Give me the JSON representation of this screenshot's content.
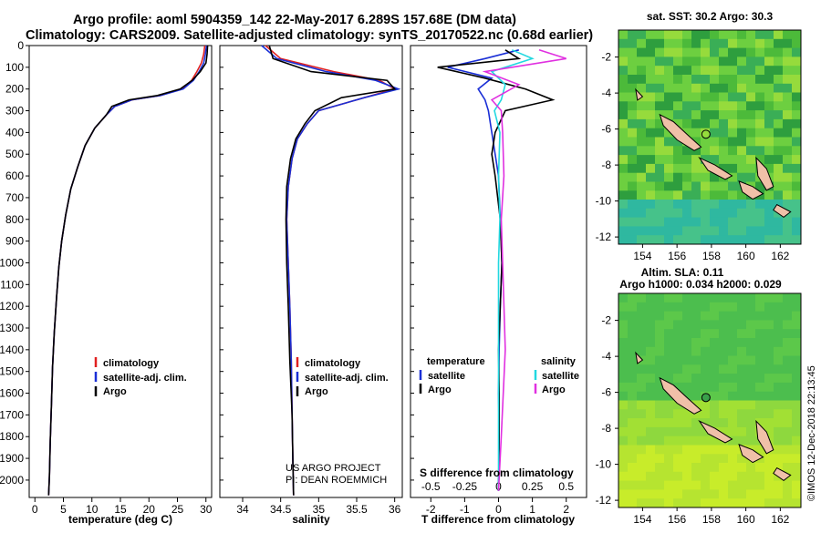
{
  "header": {
    "line1": "Argo profile: aoml 5904359_142 22-May-2017 6.289S 157.68E (DM data)",
    "line2": "Climatology: CARS2009. Satellite-adjusted climatology: synTS_20170522.nc (0.68d earlier)"
  },
  "colors": {
    "climatology": "#e02020",
    "satellite": "#1a2fd6",
    "argo": "#000000",
    "sal_satellite": "#22d8e0",
    "sal_argo": "#e030e0"
  },
  "credit": {
    "line1": "US ARGO PROJECT",
    "line2": "PI: DEAN ROEMMICH"
  },
  "stamp": "©IMOS 12-Dec-2018 22:13:45",
  "chart_data": [
    {
      "type": "line",
      "name": "temperature-profile",
      "xlabel": "temperature (deg C)",
      "ylabel": "",
      "xlim": [
        -1,
        31
      ],
      "ylim": [
        2080,
        0
      ],
      "xticks": [
        0,
        5,
        10,
        15,
        20,
        25,
        30
      ],
      "yticks": [
        0,
        100,
        200,
        300,
        400,
        500,
        600,
        700,
        800,
        900,
        1000,
        1100,
        1200,
        1300,
        1400,
        1500,
        1600,
        1700,
        1800,
        1900,
        2000
      ],
      "legend": [
        "climatology",
        "satellite-adj. clim.",
        "Argo"
      ],
      "series": [
        {
          "name": "climatology",
          "x": [
            29.8,
            29.6,
            29.2,
            28.4,
            27.5,
            25.8,
            22.0,
            17.0,
            14.0,
            12.5,
            10.5,
            8.8,
            7.5,
            6.3,
            5.4,
            4.7,
            4.2,
            3.8,
            3.4,
            3.1,
            2.9,
            2.7,
            2.55,
            2.4
          ],
          "y": [
            0,
            40,
            80,
            120,
            160,
            200,
            230,
            250,
            280,
            320,
            380,
            460,
            560,
            660,
            780,
            900,
            1020,
            1160,
            1320,
            1480,
            1650,
            1820,
            1980,
            2070
          ]
        },
        {
          "name": "satellite-adj. clim.",
          "x": [
            30.1,
            29.9,
            29.6,
            28.8,
            27.8,
            26.0,
            22.0,
            17.0,
            14.0,
            12.5,
            10.5,
            8.8,
            7.5,
            6.3,
            5.4,
            4.7,
            4.2,
            3.8,
            3.4,
            3.1,
            2.9,
            2.7,
            2.55,
            2.4
          ],
          "y": [
            0,
            40,
            80,
            120,
            160,
            200,
            230,
            250,
            280,
            320,
            380,
            460,
            560,
            660,
            780,
            900,
            1020,
            1160,
            1320,
            1480,
            1650,
            1820,
            1980,
            2070
          ]
        },
        {
          "name": "Argo",
          "x": [
            30.3,
            30.2,
            30.0,
            29.0,
            27.6,
            25.5,
            21.5,
            16.5,
            13.5,
            12.5,
            10.5,
            8.8,
            7.5,
            6.3,
            5.4,
            4.7,
            4.2,
            3.8,
            3.4,
            3.1,
            2.9,
            2.7,
            2.55,
            2.4
          ],
          "y": [
            0,
            40,
            80,
            120,
            160,
            200,
            230,
            250,
            280,
            320,
            380,
            460,
            560,
            660,
            780,
            900,
            1020,
            1160,
            1320,
            1480,
            1650,
            1820,
            1980,
            2070
          ]
        }
      ]
    },
    {
      "type": "line",
      "name": "salinity-profile",
      "xlabel": "salinity",
      "xlim": [
        33.7,
        36.1
      ],
      "ylim": [
        2080,
        0
      ],
      "xticks": [
        34,
        34.5,
        35,
        35.5,
        36
      ],
      "xticklabels": [
        "34",
        "34.5",
        "35",
        "35.5",
        "36"
      ],
      "legend": [
        "climatology",
        "satellite-adj. clim.",
        "Argo"
      ],
      "series": [
        {
          "name": "climatology",
          "x": [
            34.3,
            34.5,
            35.2,
            35.8,
            36.0,
            35.6,
            35.0,
            34.85,
            34.72,
            34.65,
            34.6,
            34.58,
            34.6,
            34.62,
            34.64,
            34.65,
            34.66,
            34.67
          ],
          "y": [
            0,
            60,
            120,
            160,
            200,
            240,
            300,
            360,
            430,
            520,
            650,
            800,
            1000,
            1200,
            1450,
            1700,
            1900,
            2070
          ]
        },
        {
          "name": "satellite-adj. clim.",
          "x": [
            34.25,
            34.45,
            35.1,
            35.75,
            36.05,
            35.6,
            35.0,
            34.85,
            34.72,
            34.65,
            34.6,
            34.58,
            34.6,
            34.62,
            34.64,
            34.65,
            34.66,
            34.67
          ],
          "y": [
            0,
            60,
            120,
            160,
            200,
            240,
            300,
            360,
            430,
            520,
            650,
            800,
            1000,
            1200,
            1450,
            1700,
            1900,
            2070
          ]
        },
        {
          "name": "Argo",
          "x": [
            34.35,
            34.4,
            34.9,
            35.9,
            36.0,
            35.3,
            34.95,
            34.82,
            34.7,
            34.63,
            34.58,
            34.57,
            34.58,
            34.6,
            34.62,
            34.65,
            34.66,
            34.67
          ],
          "y": [
            0,
            60,
            120,
            160,
            200,
            240,
            300,
            360,
            430,
            520,
            650,
            800,
            1000,
            1200,
            1450,
            1700,
            1900,
            2070
          ]
        }
      ]
    },
    {
      "type": "line",
      "name": "difference-profile",
      "xlabel": "T difference from climatology",
      "xlabel2": "S difference from climatology",
      "xlim": [
        -2.6,
        2.6
      ],
      "ylim": [
        2080,
        0
      ],
      "xticks": [
        -2,
        -1,
        0,
        1,
        2
      ],
      "xticks2": [
        -0.5,
        -0.25,
        0,
        0.25,
        0.5
      ],
      "xticklabels2": [
        "-0.5",
        "-0.25",
        "0",
        "0.25",
        "0.5"
      ],
      "legend_title_left": "temperature",
      "legend_title_right": "salinity",
      "legend_left": [
        "satellite",
        "Argo"
      ],
      "legend_right": [
        "satellite",
        "Argo"
      ],
      "series": [
        {
          "name": "T satellite",
          "x": [
            0.6,
            -0.4,
            -1.5,
            -0.2,
            -0.6,
            -0.4,
            -0.3,
            -0.2,
            -0.1,
            0,
            0.05,
            0.1,
            0.05,
            0.02,
            0,
            0.02,
            0
          ],
          "y": [
            20,
            60,
            100,
            150,
            200,
            250,
            300,
            400,
            500,
            600,
            800,
            1000,
            1200,
            1400,
            1600,
            1800,
            2050
          ]
        },
        {
          "name": "T Argo",
          "x": [
            0.2,
            0.6,
            -1.8,
            -0.4,
            0.8,
            1.6,
            0.2,
            -0.1,
            -0.2,
            -0.1,
            0.05,
            0.1,
            0.05,
            0,
            0.02,
            0.02,
            0
          ],
          "y": [
            20,
            60,
            100,
            150,
            200,
            250,
            300,
            400,
            500,
            600,
            800,
            1000,
            1200,
            1400,
            1600,
            1800,
            2050
          ]
        },
        {
          "name": "S satellite",
          "x": [
            0.1,
            0.25,
            -0.05,
            0.05,
            0.02,
            -0.03,
            0.01,
            0,
            0.01,
            0,
            0,
            0,
            0
          ],
          "y": [
            20,
            60,
            120,
            180,
            250,
            300,
            400,
            600,
            800,
            1000,
            1400,
            1800,
            2050
          ]
        },
        {
          "name": "S Argo",
          "x": [
            0.3,
            0.5,
            -0.1,
            0.15,
            -0.05,
            0.02,
            0.03,
            0.04,
            0.02,
            0.03,
            0.05,
            0.02,
            0
          ],
          "y": [
            20,
            60,
            120,
            180,
            250,
            300,
            400,
            600,
            800,
            1000,
            1400,
            1800,
            2050
          ]
        }
      ]
    },
    {
      "type": "heatmap",
      "name": "sst-map",
      "title": "sat. SST: 30.2 Argo: 30.3",
      "xlim": [
        152.6,
        163.2
      ],
      "ylim": [
        -12.4,
        -0.5
      ],
      "xticks": [
        154,
        156,
        158,
        160,
        162
      ],
      "yticks": [
        -2,
        -4,
        -6,
        -8,
        -10,
        -12
      ],
      "marker": {
        "lon": 157.68,
        "lat": -6.289
      }
    },
    {
      "type": "heatmap",
      "name": "sla-map",
      "title": "Altim. SLA: 0.11",
      "subtitle": "Argo h1000: 0.034 h2000: 0.029",
      "xlim": [
        152.6,
        163.2
      ],
      "ylim": [
        -12.4,
        -0.5
      ],
      "xticks": [
        154,
        156,
        158,
        160,
        162
      ],
      "yticks": [
        -2,
        -4,
        -6,
        -8,
        -10,
        -12
      ],
      "marker": {
        "lon": 157.68,
        "lat": -6.289
      }
    }
  ]
}
